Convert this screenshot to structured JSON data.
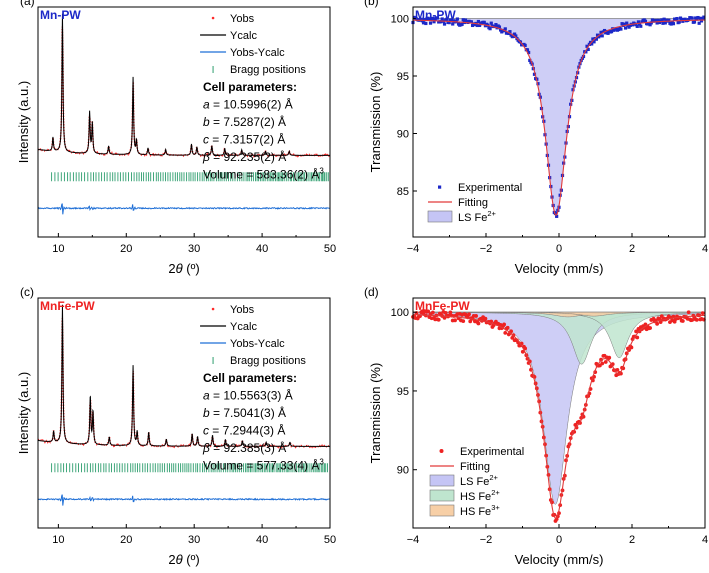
{
  "chart_data": [
    {
      "type": "line",
      "panel_label": "(a)",
      "sample_label": "Mn-PW",
      "xlabel_pre": "2",
      "xlabel_theta": "θ",
      "xlabel_post": " (º)",
      "ylabel": "Intensity (a.u.)",
      "xlim": [
        7,
        50
      ],
      "xticks": [
        10,
        20,
        30,
        40,
        50
      ],
      "tick_labels": [
        "10",
        "20",
        "30",
        "40",
        "50"
      ],
      "legend": [
        "Yobs",
        "Ycalc",
        "Yobs-Ycalc",
        "Bragg positions"
      ],
      "cell": {
        "title": "Cell parameters:",
        "a": {
          "sym": "a",
          "val": " = 10.5996(2) Å"
        },
        "b": {
          "sym": "b",
          "val": " = 7.5287(2) Å"
        },
        "c": {
          "sym": "c",
          "val": " = 7.3157(2) Å"
        },
        "beta": {
          "sym": "β",
          "val": " = 92.235(2) Å"
        },
        "volume": "Volume = 583.36(2) Å",
        "volume_sup": "3"
      },
      "peaks": [
        {
          "x": 9.2,
          "h": 0.1
        },
        {
          "x": 10.6,
          "h": 1.0
        },
        {
          "x": 14.6,
          "h": 0.3
        },
        {
          "x": 15.0,
          "h": 0.22
        },
        {
          "x": 17.4,
          "h": 0.06
        },
        {
          "x": 21.0,
          "h": 0.56
        },
        {
          "x": 21.5,
          "h": 0.1
        },
        {
          "x": 23.2,
          "h": 0.05
        },
        {
          "x": 25.8,
          "h": 0.04
        },
        {
          "x": 29.6,
          "h": 0.08
        },
        {
          "x": 30.4,
          "h": 0.06
        },
        {
          "x": 32.6,
          "h": 0.07
        },
        {
          "x": 34.5,
          "h": 0.05
        },
        {
          "x": 37.0,
          "h": 0.04
        },
        {
          "x": 40.5,
          "h": 0.03
        },
        {
          "x": 44.0,
          "h": 0.03
        }
      ],
      "bragg_start": 9.0
    },
    {
      "type": "line",
      "panel_label": "(b)",
      "sample_label": "Mn-PW",
      "xlabel": "Velocity (mm/s)",
      "ylabel": "Transmission (%)",
      "xlim": [
        -4,
        4
      ],
      "ylim": [
        81,
        101
      ],
      "xticks": [
        -4,
        -2,
        0,
        2,
        4
      ],
      "xtick_labels": [
        "−4",
        "−2",
        "0",
        "2",
        "4"
      ],
      "yticks": [
        85,
        90,
        95,
        100
      ],
      "ytick_labels": [
        "85",
        "90",
        "95",
        "100"
      ],
      "legend": [
        {
          "label": "Experimental"
        },
        {
          "label": "Fitting"
        },
        {
          "label": "LS Fe",
          "sup": "2+"
        }
      ],
      "components": [
        {
          "name": "LS Fe2+",
          "center": -0.08,
          "depth": 17.1,
          "width": 0.36,
          "color": "#c5c5f5"
        }
      ]
    },
    {
      "type": "line",
      "panel_label": "(c)",
      "sample_label": "MnFe-PW",
      "xlabel_pre": "2",
      "xlabel_theta": "θ",
      "xlabel_post": " (º)",
      "ylabel": "Intensity (a.u.)",
      "xlim": [
        7,
        50
      ],
      "xticks": [
        10,
        20,
        30,
        40,
        50
      ],
      "tick_labels": [
        "10",
        "20",
        "30",
        "40",
        "50"
      ],
      "legend": [
        "Yobs",
        "Ycalc",
        "Yobs-Ycalc",
        "Bragg positions"
      ],
      "cell": {
        "title": "Cell parameters:",
        "a": {
          "sym": "a",
          "val": " = 10.5563(3) Å"
        },
        "b": {
          "sym": "b",
          "val": " = 7.5041(3) Å"
        },
        "c": {
          "sym": "c",
          "val": " = 7.2944(3) Å"
        },
        "beta": {
          "sym": "β",
          "val": " = 92.385(3) Å"
        },
        "volume": "Volume = 577.33(4) Å",
        "volume_sup": "3"
      },
      "peaks": [
        {
          "x": 9.3,
          "h": 0.08
        },
        {
          "x": 10.6,
          "h": 1.0
        },
        {
          "x": 14.7,
          "h": 0.35
        },
        {
          "x": 15.1,
          "h": 0.24
        },
        {
          "x": 17.5,
          "h": 0.06
        },
        {
          "x": 21.0,
          "h": 0.58
        },
        {
          "x": 21.6,
          "h": 0.1
        },
        {
          "x": 23.3,
          "h": 0.1
        },
        {
          "x": 25.9,
          "h": 0.05
        },
        {
          "x": 29.7,
          "h": 0.09
        },
        {
          "x": 30.5,
          "h": 0.07
        },
        {
          "x": 32.7,
          "h": 0.08
        },
        {
          "x": 34.6,
          "h": 0.05
        },
        {
          "x": 37.1,
          "h": 0.04
        },
        {
          "x": 40.6,
          "h": 0.03
        },
        {
          "x": 44.1,
          "h": 0.03
        }
      ],
      "bragg_start": 9.0
    },
    {
      "type": "line",
      "panel_label": "(d)",
      "sample_label": "MnFe-PW",
      "xlabel": "Velocity (mm/s)",
      "ylabel": "Transmission (%)",
      "xlim": [
        -4,
        4
      ],
      "ylim": [
        86.3,
        100.9
      ],
      "xticks": [
        -4,
        -2,
        0,
        2,
        4
      ],
      "xtick_labels": [
        "−4",
        "−2",
        "0",
        "2",
        "4"
      ],
      "yticks": [
        90,
        95,
        100
      ],
      "ytick_labels": [
        "90",
        "95",
        "100"
      ],
      "legend": [
        {
          "label": "Experimental"
        },
        {
          "label": "Fitting"
        },
        {
          "label": "LS Fe",
          "sup": "2+"
        },
        {
          "label": "HS Fe",
          "sup": "2+"
        },
        {
          "label": "HS Fe",
          "sup": "3+"
        }
      ],
      "components": [
        {
          "name": "LS Fe2+",
          "center": -0.1,
          "depth": 12.2,
          "width": 0.4,
          "color": "#c5c5f5"
        },
        {
          "name": "HS Fe2+",
          "center": 0.62,
          "depth": 3.3,
          "width": 0.32,
          "color": "#bfe5cf"
        },
        {
          "name": "HS Fe2+",
          "center": 1.65,
          "depth": 2.9,
          "width": 0.3,
          "color": "#bfe5cf"
        },
        {
          "name": "HS Fe3+",
          "center": 0.25,
          "depth": 0.3,
          "width": 0.5,
          "color": "#f7cfa6"
        },
        {
          "name": "HS Fe3+",
          "center": 0.95,
          "depth": 0.25,
          "width": 0.5,
          "color": "#f7cfa6"
        }
      ]
    }
  ]
}
